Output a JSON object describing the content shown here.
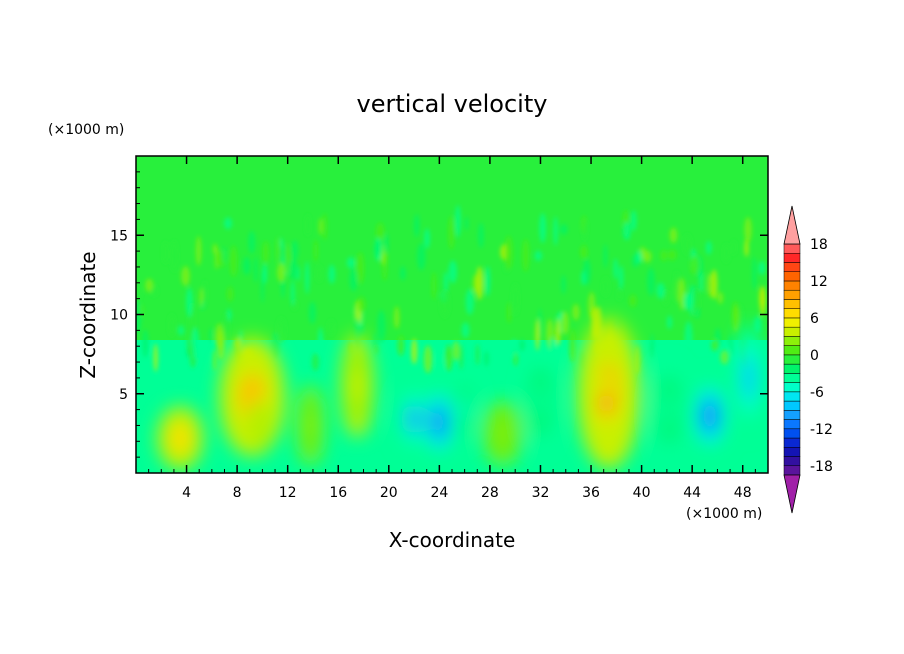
{
  "chart_data": {
    "type": "heatmap",
    "title": "vertical velocity",
    "xlabel": "X-coordinate",
    "ylabel": "Z-coordinate",
    "x_unit": "(×1000 m)",
    "y_unit": "(×1000 m)",
    "xlim": [
      0,
      50
    ],
    "ylim": [
      0,
      20
    ],
    "x_ticks": [
      4,
      8,
      12,
      16,
      20,
      24,
      28,
      32,
      36,
      40,
      44,
      48
    ],
    "y_ticks": [
      5,
      10,
      15
    ],
    "colorbar": {
      "levels": [
        -21,
        -19.5,
        -18,
        -16.5,
        -15,
        -13.5,
        -12,
        -10.5,
        -9,
        -7.5,
        -6,
        -4.5,
        -3,
        -1.5,
        0,
        1.5,
        3,
        4.5,
        6,
        7.5,
        9,
        10.5,
        12,
        13.5,
        15,
        16.5,
        18,
        19.5
      ],
      "tick_labels": [
        "18",
        "12",
        "6",
        "0",
        "-6",
        "-12",
        "-18"
      ],
      "tick_values": [
        18,
        12,
        6,
        0,
        -6,
        -12,
        -18
      ],
      "colors": [
        "#a020a8",
        "#5a149c",
        "#3210a0",
        "#1414b4",
        "#0a28d2",
        "#0050f0",
        "#0a78ff",
        "#14a0ff",
        "#00c8ff",
        "#00e6f0",
        "#00ffc8",
        "#00ff96",
        "#00f46a",
        "#28f03c",
        "#50ec14",
        "#8cf00a",
        "#c8f000",
        "#f0f000",
        "#ffdc00",
        "#ffc000",
        "#ffa000",
        "#ff8200",
        "#ff6400",
        "#ff4614",
        "#ff2828",
        "#ff5a5a",
        "#ffa0a0"
      ],
      "extend": "both"
    },
    "features": [
      {
        "x": 3.5,
        "z": 2.2,
        "w": 3.6,
        "h": 4.0,
        "w_ms": 6.5
      },
      {
        "x": 9.2,
        "z": 4.8,
        "w": 5.2,
        "h": 7.5,
        "w_ms": 7.5
      },
      {
        "x": 9.8,
        "z": 3.0,
        "w": 2.0,
        "h": 3.5,
        "w_ms": 3.0
      },
      {
        "x": 13.8,
        "z": 3.0,
        "w": 2.2,
        "h": 5.0,
        "w_ms": 2.5
      },
      {
        "x": 17.5,
        "z": 5.5,
        "w": 2.6,
        "h": 6.5,
        "w_ms": 3.5
      },
      {
        "x": 22.0,
        "z": 3.4,
        "w": 2.8,
        "h": 4.5,
        "w_ms": -10.0
      },
      {
        "x": 24.0,
        "z": 3.2,
        "w": 2.8,
        "h": 5.0,
        "w_ms": -11.0
      },
      {
        "x": 26.0,
        "z": 4.0,
        "w": 1.8,
        "h": 4.0,
        "w_ms": -5.0
      },
      {
        "x": 29.0,
        "z": 2.5,
        "w": 3.0,
        "h": 4.0,
        "w_ms": 1.5
      },
      {
        "x": 32.0,
        "z": 4.5,
        "w": 2.5,
        "h": 6.0,
        "w_ms": -4.0
      },
      {
        "x": 37.4,
        "z": 5.0,
        "w": 5.0,
        "h": 9.5,
        "w_ms": 8.0
      },
      {
        "x": 37.2,
        "z": 4.4,
        "w": 1.8,
        "h": 3.5,
        "w_ms": 13.5
      },
      {
        "x": 42.2,
        "z": 4.0,
        "w": 2.5,
        "h": 6.0,
        "w_ms": -3.5
      },
      {
        "x": 45.4,
        "z": 3.6,
        "w": 3.2,
        "h": 5.0,
        "w_ms": -11.0
      },
      {
        "x": 48.5,
        "z": 6.0,
        "w": 2.4,
        "h": 7.0,
        "w_ms": -8.0
      }
    ]
  }
}
